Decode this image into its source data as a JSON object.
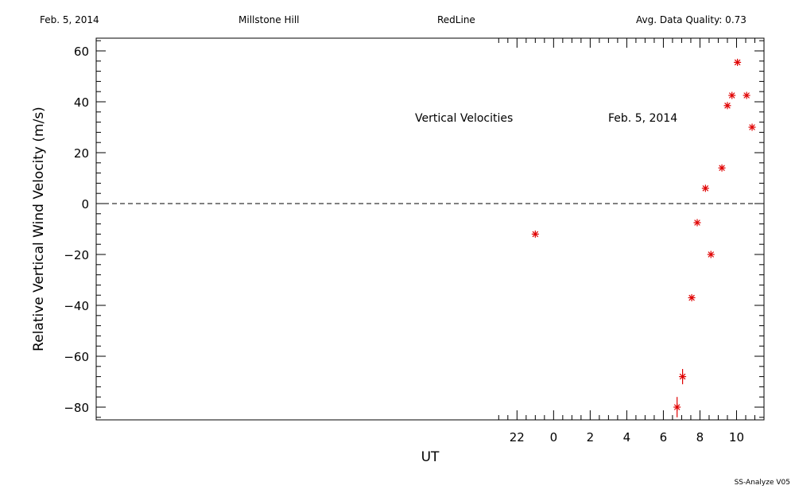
{
  "header": {
    "date": "Feb. 5, 2014",
    "site": "Millstone Hill",
    "instrument": "RedLine",
    "quality": "Avg. Data Quality: 0.73"
  },
  "footer": {
    "version": "SS-Analyze V05"
  },
  "chart_data": {
    "type": "scatter",
    "title": "",
    "xlabel": "UT",
    "ylabel": "Relative Vertical Wind Velocity (m/s)",
    "annotations": [
      "Vertical Velocities",
      "Feb. 5, 2014"
    ],
    "x_ticks": [
      "22",
      "0",
      "2",
      "4",
      "6",
      "8",
      "10"
    ],
    "y_ticks": [
      "60",
      "40",
      "20",
      "0",
      "-20",
      "-40",
      "-60",
      "-80"
    ],
    "xlim": [
      -25,
      11.5
    ],
    "ylim": [
      -85,
      65
    ],
    "reference_line": {
      "y": 0,
      "style": "dashed"
    },
    "marker_color": "#e00000",
    "series": [
      {
        "points": [
          {
            "x": -1.0,
            "y": -12
          },
          {
            "x": 6.75,
            "y": -80,
            "err": 4
          },
          {
            "x": 7.05,
            "y": -68,
            "err": 3
          },
          {
            "x": 7.55,
            "y": -37
          },
          {
            "x": 7.85,
            "y": -7.5
          },
          {
            "x": 8.3,
            "y": 6
          },
          {
            "x": 8.6,
            "y": -20
          },
          {
            "x": 9.2,
            "y": 14
          },
          {
            "x": 9.5,
            "y": 38.5
          },
          {
            "x": 9.75,
            "y": 42.5
          },
          {
            "x": 10.05,
            "y": 55.5
          },
          {
            "x": 10.55,
            "y": 42.5
          },
          {
            "x": 10.85,
            "y": 30
          }
        ]
      }
    ]
  }
}
